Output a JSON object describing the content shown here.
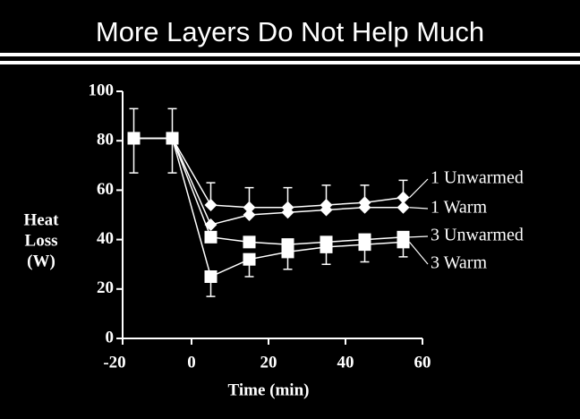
{
  "chart_data": {
    "type": "line",
    "title": "More Layers Do Not Help Much",
    "x_label": "Time (min)",
    "y_label": [
      "Heat",
      "Loss",
      "(W)"
    ],
    "x": [
      -15,
      -5,
      5,
      15,
      25,
      35,
      45,
      55
    ],
    "xlim": [
      -20,
      60
    ],
    "xticks": [
      -20,
      0,
      20,
      40,
      60
    ],
    "ylim": [
      0,
      100
    ],
    "yticks": [
      0,
      20,
      40,
      60,
      80,
      100
    ],
    "series": [
      {
        "name": "1 Unwarmed",
        "color": "#ffffff",
        "marker": "diamond",
        "values": [
          81,
          81,
          54,
          53,
          53,
          54,
          55,
          57
        ],
        "errors": [
          12,
          12,
          9,
          8,
          8,
          8,
          7,
          7
        ],
        "error_side": "up"
      },
      {
        "name": "1 Warm",
        "color": "#ffffff",
        "marker": "diamond",
        "values": [
          81,
          81,
          46,
          50,
          51,
          52,
          53,
          53
        ]
      },
      {
        "name": "3 Unwarmed",
        "color": "#ffffff",
        "marker": "square",
        "values": [
          81,
          81,
          41,
          39,
          38,
          39,
          40,
          41
        ]
      },
      {
        "name": "3 Warm",
        "color": "#ffffff",
        "marker": "square",
        "values": [
          81,
          81,
          25,
          32,
          35,
          37,
          38,
          39
        ],
        "errors": [
          14,
          14,
          8,
          7,
          7,
          7,
          7,
          6
        ],
        "error_side": "down"
      }
    ]
  }
}
